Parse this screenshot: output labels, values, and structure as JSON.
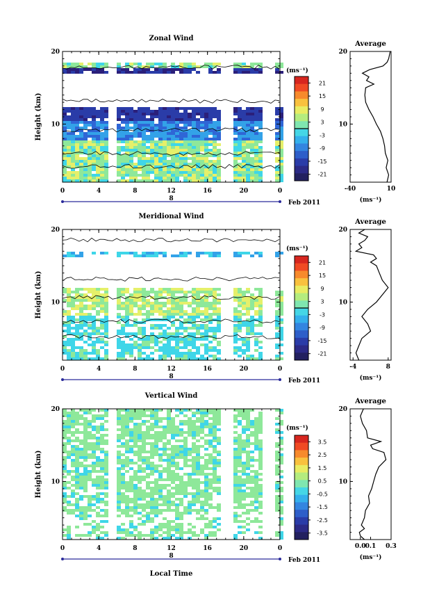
{
  "chart_data": [
    {
      "type": "heatmap",
      "title": "Zonal Wind",
      "ylabel": "Height (km)",
      "x_ticks": [
        "0",
        "4",
        "8",
        "12",
        "16",
        "20",
        "0"
      ],
      "xlim": [
        0,
        24
      ],
      "ylim": [
        2,
        20
      ],
      "y_tick_labels": [
        "20",
        "10"
      ],
      "date_marker": "8",
      "date_label": "Feb 2011",
      "colorbar": {
        "unit": "(ms⁻¹)",
        "ticks": [
          "21",
          "15",
          "9",
          "3",
          "-3",
          "-9",
          "-15",
          "-21"
        ],
        "range": [
          -24,
          24
        ],
        "zero_line": 0
      },
      "profile": {
        "title": "Average",
        "xlim": [
          -40,
          10
        ],
        "x_ticks": [
          "-40",
          "10"
        ],
        "xlabel": "(ms⁻¹)",
        "height": [
          2.0,
          3.0,
          4.0,
          5.0,
          6.0,
          7.0,
          8.0,
          9.0,
          10.0,
          11.0,
          12.0,
          13.0,
          14.0,
          15.0,
          15.5,
          16.0,
          16.5,
          17.0,
          17.5,
          18.0,
          18.5,
          19.0,
          19.5,
          20.0
        ],
        "value": [
          5,
          7,
          4,
          6,
          3,
          2,
          0,
          -3,
          -8,
          -12,
          -17,
          -21,
          -22,
          -21,
          -11,
          -20,
          -17,
          -25,
          -16,
          0,
          5,
          7,
          8,
          9
        ]
      }
    },
    {
      "type": "heatmap",
      "title": "Meridional Wind",
      "ylabel": "Height (km)",
      "x_ticks": [
        "0",
        "4",
        "8",
        "12",
        "16",
        "20",
        "0"
      ],
      "xlim": [
        0,
        24
      ],
      "ylim": [
        2,
        20
      ],
      "y_tick_labels": [
        "20",
        "10"
      ],
      "date_marker": "8",
      "date_label": "Feb 2011",
      "colorbar": {
        "unit": "(ms⁻¹)",
        "ticks": [
          "21",
          "15",
          "9",
          "3",
          "-3",
          "-9",
          "-15",
          "-21"
        ],
        "range": [
          -24,
          24
        ],
        "zero_line": 0
      },
      "profile": {
        "title": "Average",
        "xlim": [
          -5,
          9
        ],
        "x_ticks": [
          "-4",
          "8"
        ],
        "xlabel": "(ms⁻¹)",
        "height": [
          2.0,
          3.0,
          4.0,
          5.0,
          6.0,
          7.0,
          8.0,
          9.0,
          10.0,
          11.0,
          12.0,
          13.0,
          14.0,
          15.0,
          15.5,
          16.0,
          16.5,
          17.0,
          17.5,
          18.0,
          18.5,
          19.0,
          19.5,
          20.0
        ],
        "value": [
          -2,
          -3,
          -2,
          -1,
          2,
          1,
          -1,
          1,
          4,
          6,
          8,
          6,
          5,
          4,
          2,
          4,
          3,
          -3,
          -1,
          -2,
          0,
          1,
          -2,
          0
        ]
      }
    },
    {
      "type": "heatmap",
      "title": "Vertical Wind",
      "ylabel": "Height (km)",
      "xlabel": "Local Time",
      "x_ticks": [
        "0",
        "4",
        "8",
        "12",
        "16",
        "20",
        "0"
      ],
      "xlim": [
        0,
        24
      ],
      "ylim": [
        2,
        20
      ],
      "y_tick_labels": [
        "20",
        "10"
      ],
      "date_marker": "8",
      "date_label": "Feb 2011",
      "colorbar": {
        "unit": "(ms⁻¹)",
        "ticks": [
          "3.5",
          "2.5",
          "1.5",
          "0.5",
          "-0.5",
          "-1.5",
          "-2.5",
          "-3.5"
        ],
        "range": [
          -4,
          4
        ],
        "zero_line": null
      },
      "profile": {
        "title": "Average",
        "xlim": [
          -0.1,
          0.3
        ],
        "x_ticks": [
          "0.0",
          "0.1",
          "0.3"
        ],
        "xlabel": "(ms⁻¹)",
        "height": [
          2.0,
          2.5,
          3.0,
          3.5,
          4.0,
          5.0,
          6.0,
          7.0,
          8.0,
          9.0,
          10.0,
          11.0,
          12.0,
          13.0,
          14.0,
          14.5,
          15.0,
          15.5,
          16.0,
          17.0,
          18.0,
          19.0,
          20.0
        ],
        "value": [
          0.04,
          0.0,
          -0.01,
          0.04,
          0.01,
          0.04,
          0.05,
          0.09,
          0.08,
          0.11,
          0.13,
          0.15,
          0.18,
          0.25,
          0.23,
          0.12,
          0.1,
          0.2,
          0.07,
          0.06,
          0.02,
          0.0,
          0.03
        ]
      }
    }
  ]
}
